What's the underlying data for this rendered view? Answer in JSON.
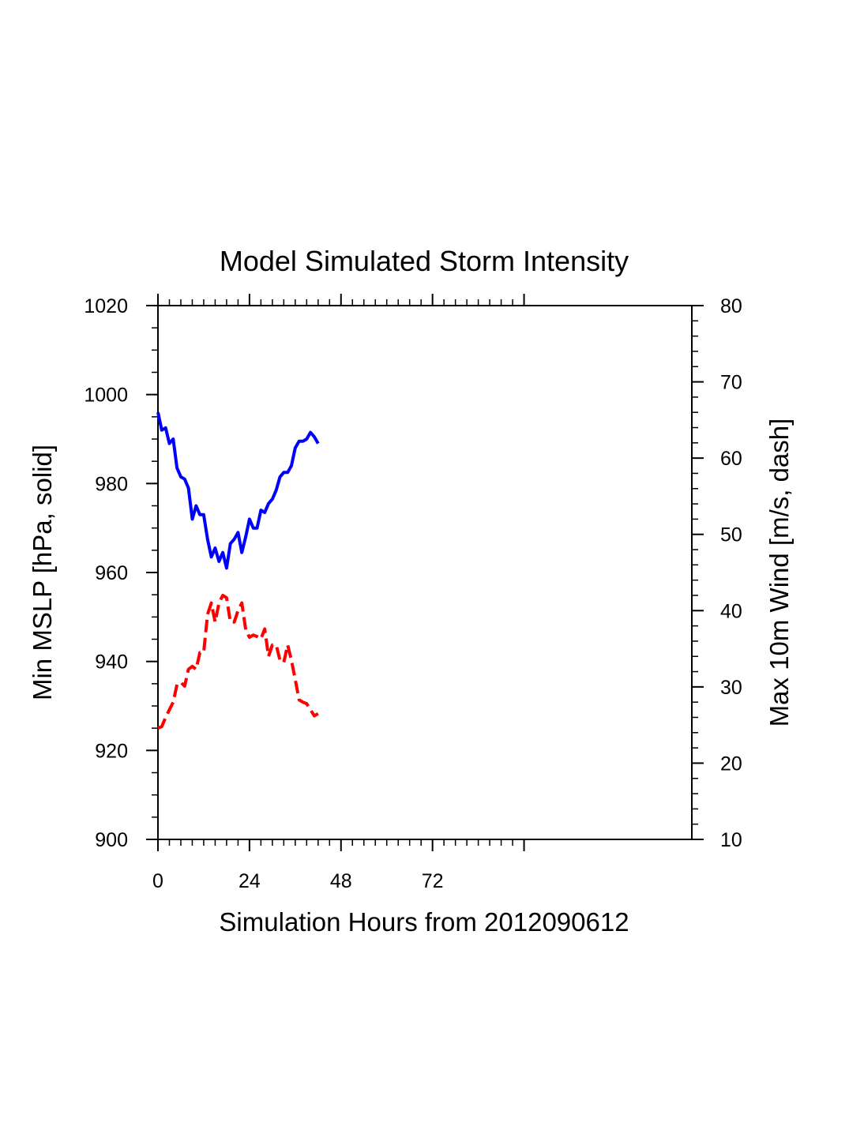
{
  "chart_data": {
    "type": "line",
    "title": "Model Simulated Storm Intensity",
    "xlabel": "Simulation Hours from 2012090612",
    "ylabel": "Min MSLP  [hPa, solid]",
    "ylabel_right": "Max 10m Wind  [m/s, dash]",
    "xlim": [
      0,
      140
    ],
    "ylim": [
      900,
      1020
    ],
    "ylim_right": [
      10,
      80
    ],
    "x_ticks": [
      0,
      24,
      48,
      72
    ],
    "x_tick_labels": [
      "0",
      "24",
      "48",
      "72"
    ],
    "y_ticks": [
      900,
      920,
      940,
      960,
      980,
      1000,
      1020
    ],
    "y_tick_labels": [
      "900",
      "920",
      "940",
      "960",
      "980",
      "1000",
      "1020"
    ],
    "y_right_ticks": [
      10,
      20,
      30,
      40,
      50,
      60,
      70,
      80
    ],
    "y_right_tick_labels": [
      "10",
      "20",
      "30",
      "40",
      "50",
      "60",
      "70",
      "80"
    ],
    "grid": false,
    "colors": {
      "mslp": "#0000ff",
      "wind": "#ff0000"
    },
    "series": [
      {
        "style": "solid",
        "axis": "left",
        "x": [
          0,
          1,
          2,
          3,
          4,
          5,
          6,
          7,
          8,
          9,
          10,
          11,
          12,
          13,
          14,
          15,
          16,
          17,
          18,
          19,
          20,
          21,
          22,
          23,
          24,
          25,
          26,
          27,
          28,
          29,
          30,
          31,
          32,
          33,
          34,
          35,
          36,
          37,
          38,
          39,
          40,
          41,
          42
        ],
        "values": [
          996,
          992,
          992.5,
          989,
          990,
          983.5,
          981.5,
          981,
          979,
          972,
          975,
          973,
          973,
          967.5,
          963.5,
          965.5,
          962.5,
          964.5,
          961,
          966.5,
          967.5,
          969,
          964.5,
          968,
          972,
          970,
          970,
          974,
          973.5,
          975.5,
          976.5,
          978.5,
          981.5,
          982.5,
          982.5,
          984,
          988,
          989.5,
          989.5,
          990,
          991.5,
          990.5,
          989
        ]
      },
      {
        "style": "dash",
        "axis": "right",
        "x": [
          0,
          1,
          2,
          3,
          4,
          5,
          6,
          7,
          8,
          9,
          10,
          11,
          12,
          13,
          14,
          15,
          16,
          17,
          18,
          19,
          20,
          21,
          22,
          23,
          24,
          25,
          26,
          27,
          28,
          29,
          30,
          31,
          32,
          33,
          34,
          35,
          36,
          37,
          38,
          39,
          40,
          41,
          42
        ],
        "values": [
          24.6,
          24.8,
          26,
          27,
          28,
          30.3,
          30.6,
          30.1,
          32.3,
          32.7,
          32.3,
          34.5,
          34.5,
          39.5,
          41,
          38.5,
          41,
          42,
          41.7,
          38.5,
          38.5,
          40,
          41,
          37.5,
          36.5,
          36.8,
          36.6,
          36.3,
          37.6,
          34,
          35.5,
          35.5,
          33.5,
          33.2,
          35.5,
          33.5,
          31,
          28.3,
          28,
          27.8,
          27,
          26.2,
          26.5
        ]
      }
    ]
  }
}
